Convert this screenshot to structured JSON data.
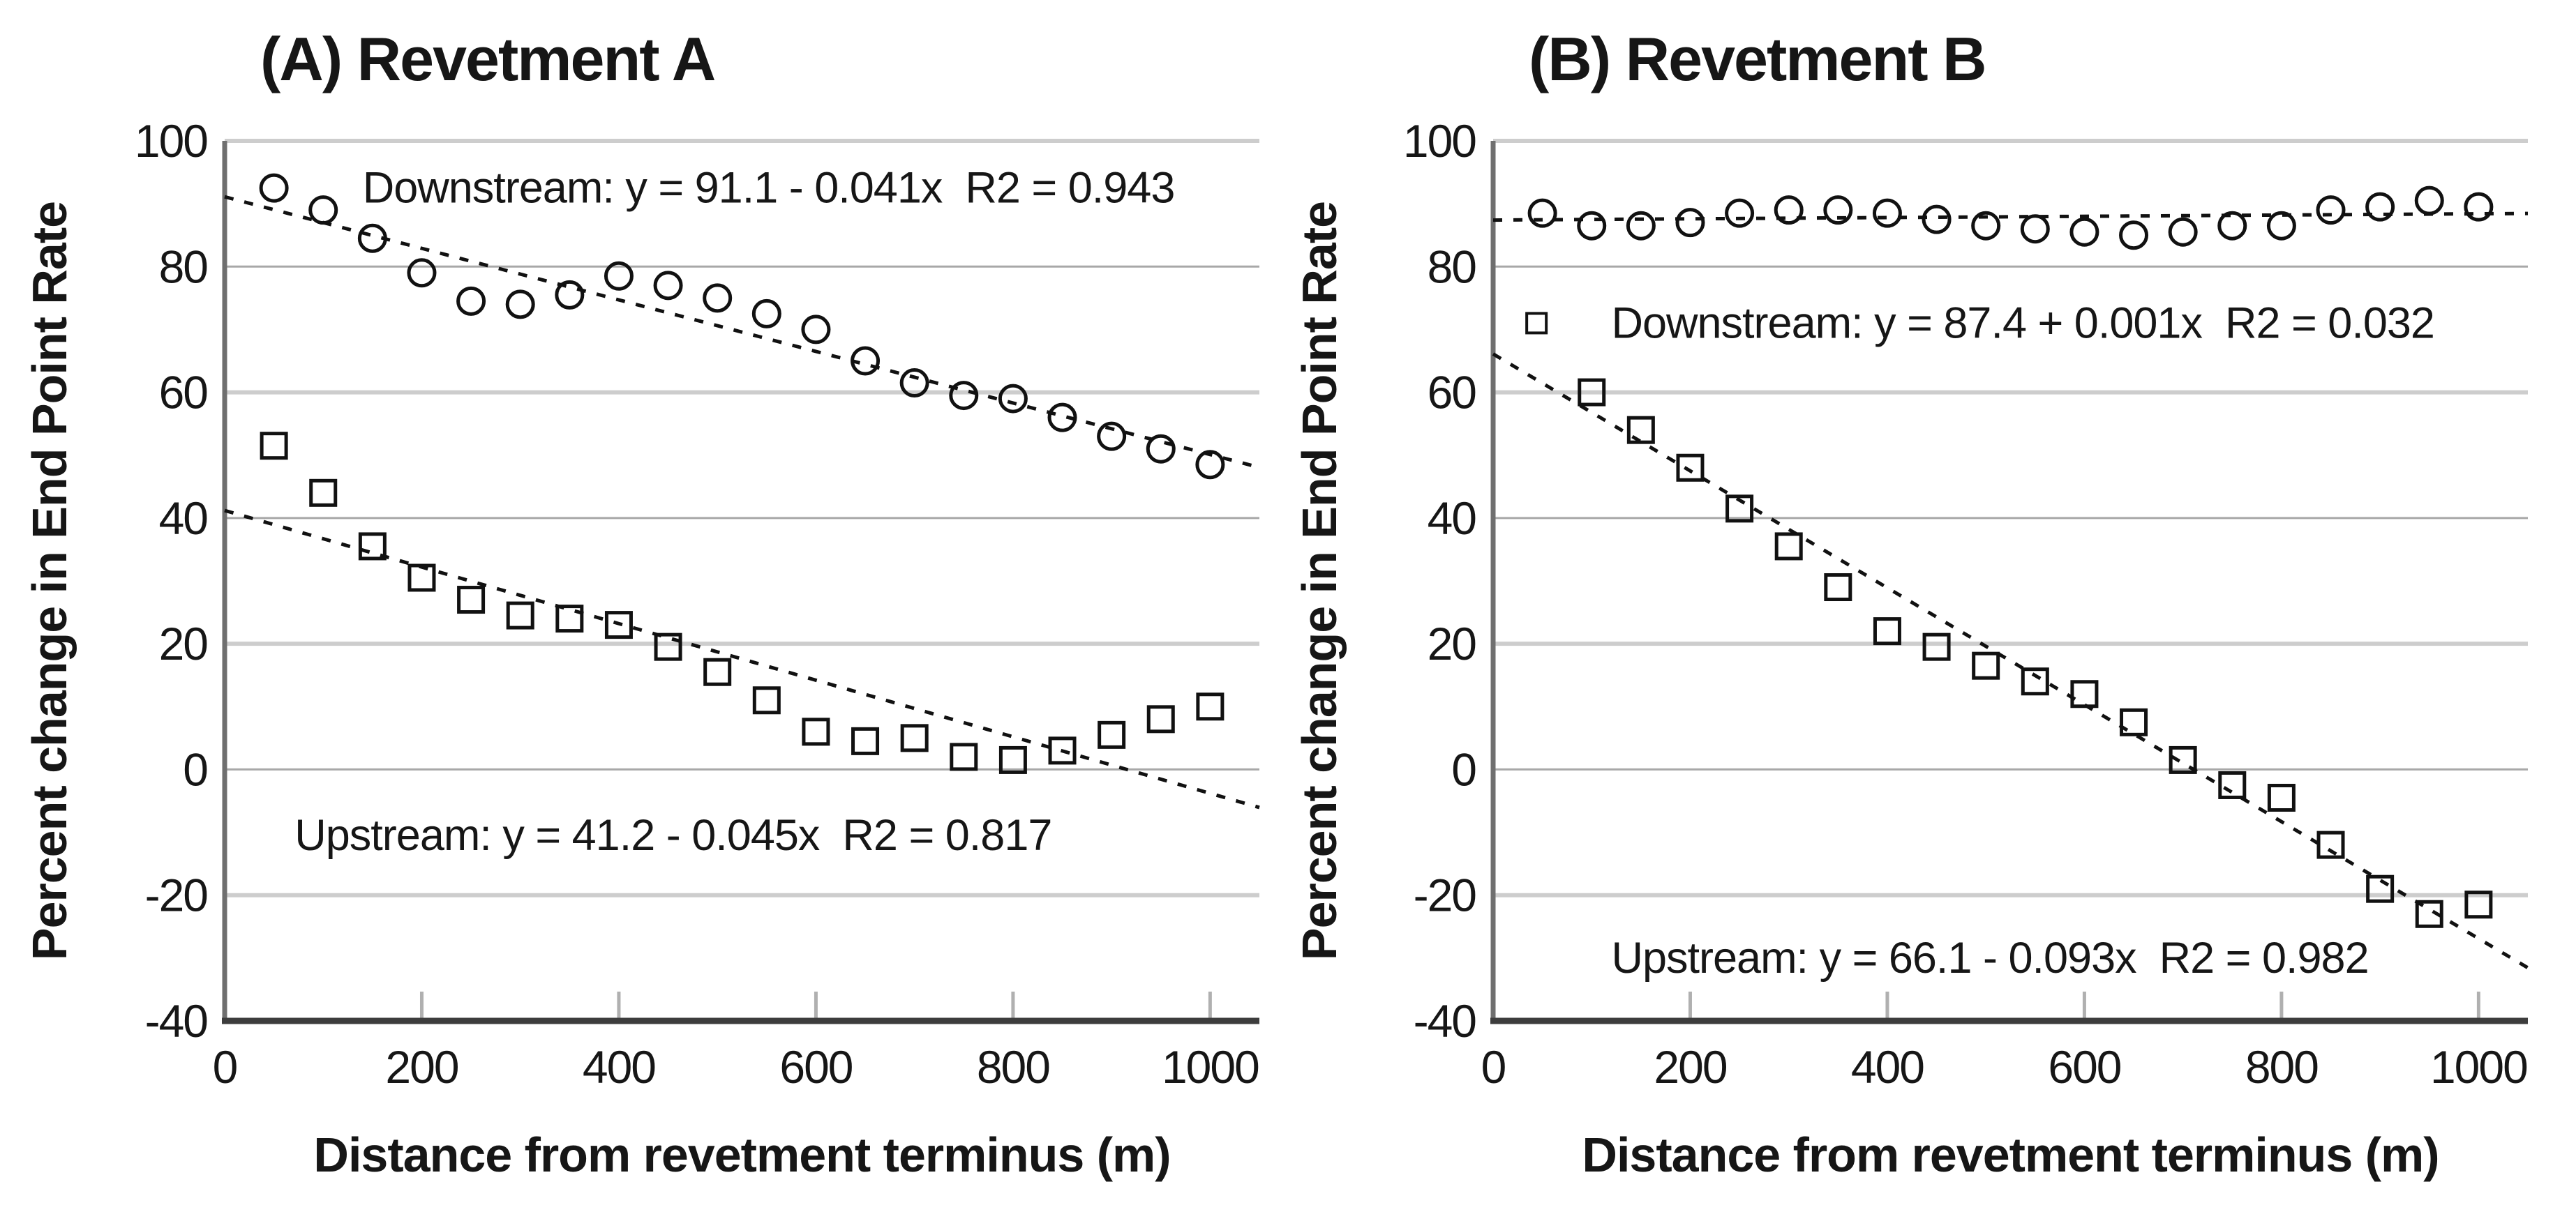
{
  "figure": {
    "background": "#ffffff",
    "colors": {
      "text": "#161616",
      "marker": "#111111",
      "trendline": "#111111",
      "grid_light": "#cdcdcd",
      "grid_dark": "#a8a8a8",
      "x_axis": "#3d3d3d",
      "y_axis": "#6f6f6f",
      "tick_mark": "#b0b0b0"
    }
  },
  "chart_data": [
    {
      "type": "scatter",
      "title": "(A) Revetment A",
      "xlabel": "Distance from revetment terminus (m)",
      "ylabel": "Percent change in End Point Rate",
      "xlim": [
        0,
        1050
      ],
      "ylim": [
        -40,
        100
      ],
      "xticks": [
        0,
        200,
        400,
        600,
        800,
        1000
      ],
      "yticks": [
        100,
        80,
        60,
        40,
        20,
        0,
        -20,
        -40
      ],
      "grid_light_values": [
        100,
        60,
        20,
        -20
      ],
      "grid_dark_values": [
        80,
        40,
        0
      ],
      "series": [
        {
          "name": "Downstream",
          "marker": "circle",
          "x": [
            50,
            100,
            150,
            200,
            250,
            300,
            350,
            400,
            450,
            500,
            550,
            600,
            650,
            700,
            750,
            800,
            850,
            900,
            950,
            1000
          ],
          "y": [
            92.5,
            89,
            84.5,
            79,
            74.5,
            74,
            75.5,
            78.5,
            77,
            75,
            72.5,
            70,
            65,
            61.5,
            59.5,
            59,
            56,
            53,
            51,
            48.5
          ],
          "fit": {
            "intercept": 91.1,
            "slope": -0.041,
            "r2": 0.943
          },
          "annotation": {
            "text": "Downstream: y = 91.1 - 0.041x  R2 = 0.943",
            "x": 140,
            "y": 92.5
          }
        },
        {
          "name": "Upstream",
          "marker": "square",
          "x": [
            50,
            100,
            150,
            200,
            250,
            300,
            350,
            400,
            450,
            500,
            550,
            600,
            650,
            700,
            750,
            800,
            850,
            900,
            950,
            1000
          ],
          "y": [
            51.5,
            44,
            35.5,
            30.5,
            27,
            24.5,
            24,
            23,
            19.5,
            15.5,
            11,
            6,
            4.5,
            5,
            2,
            1.5,
            3,
            5.5,
            8,
            10
          ],
          "fit": {
            "intercept": 41.2,
            "slope": -0.045,
            "r2": 0.817
          },
          "annotation": {
            "text": "Upstream: y = 41.2 - 0.045x  R2 = 0.817",
            "x": 71,
            "y": -10.5
          }
        }
      ]
    },
    {
      "type": "scatter",
      "title": "(B) Revetment B",
      "xlabel": "Distance from revetment terminus (m)",
      "ylabel": "Percent change in End Point Rate",
      "xlim": [
        0,
        1050
      ],
      "ylim": [
        -40,
        100
      ],
      "xticks": [
        0,
        200,
        400,
        600,
        800,
        1000
      ],
      "yticks": [
        100,
        80,
        60,
        40,
        20,
        0,
        -20,
        -40
      ],
      "grid_light_values": [
        100,
        60,
        20,
        -20
      ],
      "grid_dark_values": [
        80,
        40,
        0
      ],
      "series": [
        {
          "name": "Downstream",
          "marker": "circle",
          "x": [
            50,
            100,
            150,
            200,
            250,
            300,
            350,
            400,
            450,
            500,
            550,
            600,
            650,
            700,
            750,
            800,
            850,
            900,
            950,
            1000
          ],
          "y": [
            88.5,
            86.5,
            86.5,
            87,
            88.5,
            89,
            89,
            88.5,
            87.5,
            86.5,
            86,
            85.5,
            85,
            85.5,
            86.5,
            86.5,
            89,
            89.5,
            90.5,
            89.5
          ],
          "fit": {
            "intercept": 87.4,
            "slope": 0.001,
            "r2": 0.032
          },
          "annotation": {
            "text": "Downstream: y = 87.4 + 0.001x  R2 = 0.032",
            "x": 120,
            "y": 71,
            "legend_square": {
              "x": 44,
              "y": 71,
              "size": 28
            }
          }
        },
        {
          "name": "Upstream",
          "marker": "square",
          "x": [
            100,
            150,
            200,
            250,
            300,
            350,
            400,
            450,
            500,
            550,
            600,
            650,
            700,
            750,
            800,
            850,
            900,
            950,
            1000
          ],
          "y": [
            60,
            54,
            48,
            41.5,
            35.5,
            29,
            22,
            19.5,
            16.5,
            14,
            12,
            7.5,
            1.5,
            -2.5,
            -4.5,
            -12,
            -19,
            -23,
            -21.5
          ],
          "fit": {
            "intercept": 66.1,
            "slope": -0.093,
            "r2": 0.982
          },
          "annotation": {
            "text": "Upstream: y = 66.1 - 0.093x  R2 = 0.982",
            "x": 120,
            "y": -30
          }
        }
      ]
    }
  ]
}
